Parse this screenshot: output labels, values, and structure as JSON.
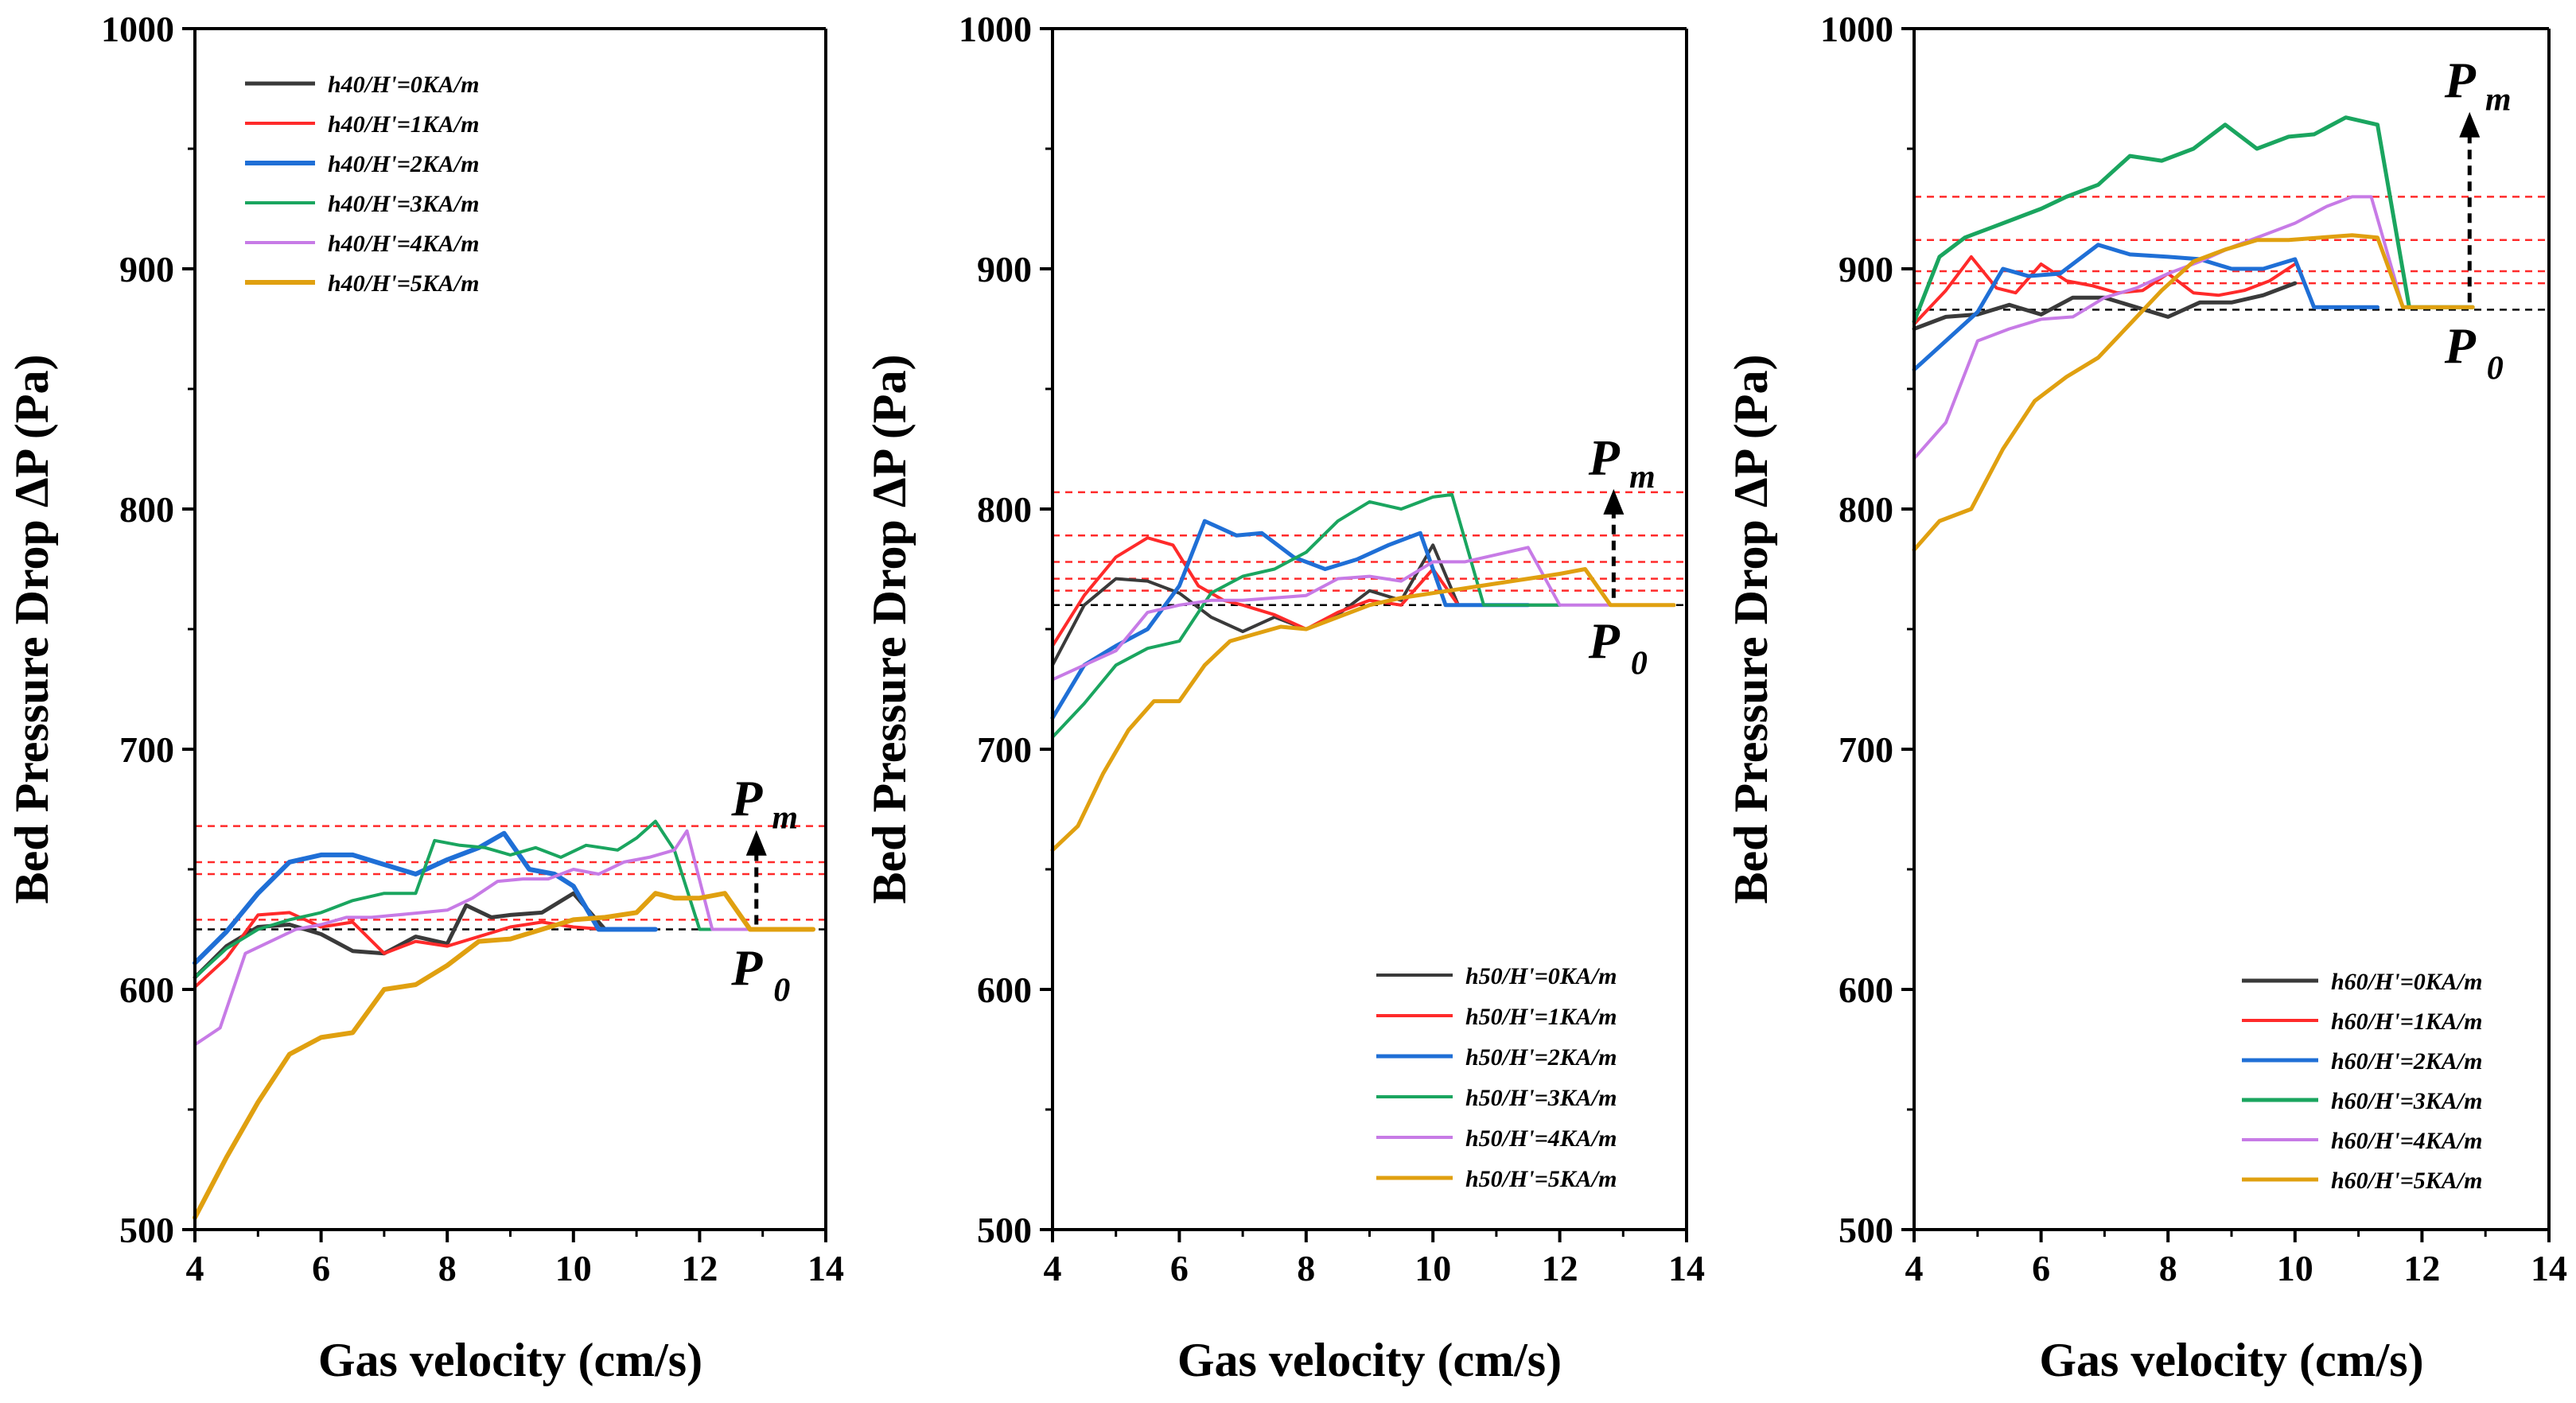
{
  "figure": {
    "ylabel": "Bed Pressure Drop ΔP (Pa)",
    "xlabel": "Gas velocity (cm/s)"
  },
  "colors": {
    "0KA": "#3a3a3a",
    "1KA": "#ff2a2a",
    "2KA": "#1f6fd6",
    "3KA": "#1aa55f",
    "4KA": "#c77be6",
    "5KA": "#e0a010"
  },
  "chart_data": [
    {
      "type": "line",
      "xlabel": "Gas velocity (cm/s)",
      "ylabel": "Bed Pressure Drop ΔP (Pa)",
      "xlim": [
        4,
        14
      ],
      "ylim": [
        500,
        1000
      ],
      "xticks": [
        "4",
        "6",
        "8",
        "10",
        "12",
        "14"
      ],
      "yticks": [
        "500",
        "600",
        "700",
        "800",
        "900",
        "1000"
      ],
      "legend_position": "top-left",
      "series": [
        {
          "name": "h40/H'=0KA/m",
          "key": "0KA",
          "width": 5,
          "x": [
            4.0,
            4.5,
            5.0,
            5.5,
            6.0,
            6.5,
            7.0,
            7.5,
            8.0,
            8.3,
            8.7,
            9.0,
            9.5,
            10.0,
            10.5,
            11.0,
            11.3
          ],
          "y": [
            605,
            618,
            626,
            627,
            623,
            616,
            615,
            622,
            619,
            635,
            630,
            631,
            632,
            640,
            625,
            625,
            625
          ]
        },
        {
          "name": "h40/H'=1KA/m",
          "key": "1KA",
          "width": 4,
          "x": [
            4.0,
            4.5,
            5.0,
            5.5,
            6.0,
            6.5,
            7.0,
            7.5,
            8.0,
            8.5,
            9.0,
            9.5,
            10.0,
            10.5
          ],
          "y": [
            601,
            613,
            631,
            632,
            626,
            628,
            615,
            620,
            618,
            622,
            626,
            628,
            626,
            625
          ]
        },
        {
          "name": "h40/H'=2KA/m",
          "key": "2KA",
          "width": 6,
          "x": [
            4.0,
            4.5,
            5.0,
            5.5,
            6.0,
            6.5,
            7.0,
            7.5,
            8.0,
            8.5,
            8.9,
            9.3,
            9.7,
            10.0,
            10.4,
            11.3
          ],
          "y": [
            611,
            624,
            640,
            653,
            656,
            656,
            652,
            648,
            654,
            659,
            665,
            650,
            648,
            643,
            625,
            625
          ]
        },
        {
          "name": "h40/H'=3KA/m",
          "key": "3KA",
          "width": 4,
          "x": [
            4.0,
            4.5,
            5.0,
            5.5,
            6.0,
            6.5,
            7.0,
            7.5,
            7.8,
            8.2,
            8.6,
            9.0,
            9.4,
            9.8,
            10.2,
            10.7,
            11.0,
            11.3,
            11.6,
            12.0,
            13.0
          ],
          "y": [
            605,
            617,
            625,
            629,
            632,
            637,
            640,
            640,
            662,
            660,
            659,
            656,
            659,
            655,
            660,
            658,
            663,
            670,
            658,
            625,
            625
          ]
        },
        {
          "name": "h40/H'=4KA/m",
          "key": "4KA",
          "width": 4,
          "x": [
            4.0,
            4.4,
            4.8,
            5.2,
            5.6,
            6.0,
            6.4,
            6.8,
            7.2,
            7.6,
            8.0,
            8.4,
            8.8,
            9.2,
            9.6,
            10.0,
            10.4,
            10.8,
            11.2,
            11.6,
            11.8,
            12.2,
            13.0
          ],
          "y": [
            577,
            584,
            615,
            620,
            625,
            627,
            630,
            630,
            631,
            632,
            633,
            638,
            645,
            646,
            646,
            650,
            648,
            653,
            655,
            658,
            666,
            625,
            625
          ]
        },
        {
          "name": "h40/H'=5KA/m",
          "key": "5KA",
          "width": 6,
          "x": [
            4.0,
            4.5,
            5.0,
            5.5,
            6.0,
            6.5,
            7.0,
            7.5,
            8.0,
            8.5,
            9.0,
            9.5,
            10.0,
            10.5,
            11.0,
            11.3,
            11.6,
            12.0,
            12.4,
            12.8,
            13.8
          ],
          "y": [
            505,
            530,
            553,
            573,
            580,
            582,
            600,
            602,
            610,
            620,
            621,
            625,
            629,
            630,
            632,
            640,
            638,
            638,
            640,
            625,
            625
          ]
        }
      ],
      "ref_lines": [
        {
          "y": 625,
          "color": "#000000"
        },
        {
          "y": 629,
          "color": "#ff2a2a"
        },
        {
          "y": 648,
          "color": "#ff2a2a"
        },
        {
          "y": 653,
          "color": "#ff2a2a"
        },
        {
          "y": 668,
          "color": "#ff2a2a"
        }
      ],
      "annotation": {
        "p_top": "P",
        "p_top_sub": "m",
        "p_bottom": "P",
        "p_bottom_sub": "0",
        "arrow_x": 12.9,
        "arrow_from": 627,
        "arrow_to": 665
      }
    },
    {
      "type": "line",
      "xlabel": "Gas velocity (cm/s)",
      "ylabel": "Bed Pressure Drop ΔP (Pa)",
      "xlim": [
        4,
        14
      ],
      "ylim": [
        500,
        1000
      ],
      "xticks": [
        "4",
        "6",
        "8",
        "10",
        "12",
        "14"
      ],
      "yticks": [
        "500",
        "600",
        "700",
        "800",
        "900",
        "1000"
      ],
      "legend_position": "bottom-right",
      "series": [
        {
          "name": "h50/H'=0KA/m",
          "key": "0KA",
          "width": 4,
          "x": [
            4.0,
            4.5,
            5.0,
            5.5,
            6.0,
            6.5,
            7.0,
            7.5,
            8.0,
            8.5,
            9.0,
            9.5,
            10.0,
            10.4,
            11.0,
            12.0
          ],
          "y": [
            735,
            760,
            771,
            770,
            765,
            755,
            749,
            755,
            750,
            756,
            766,
            762,
            785,
            760,
            760,
            760
          ]
        },
        {
          "name": "h50/H'=1KA/m",
          "key": "1KA",
          "width": 4,
          "x": [
            4.0,
            4.5,
            5.0,
            5.5,
            5.9,
            6.3,
            6.7,
            7.0,
            7.5,
            8.0,
            8.5,
            9.0,
            9.5,
            10.0,
            10.4,
            11.0
          ],
          "y": [
            743,
            764,
            780,
            788,
            785,
            768,
            762,
            760,
            756,
            750,
            757,
            762,
            760,
            775,
            760,
            760
          ]
        },
        {
          "name": "h50/H'=2KA/m",
          "key": "2KA",
          "width": 5,
          "x": [
            4.0,
            4.5,
            5.0,
            5.5,
            6.0,
            6.4,
            6.9,
            7.3,
            7.8,
            8.3,
            8.8,
            9.3,
            9.8,
            10.2,
            10.8,
            11.5
          ],
          "y": [
            713,
            735,
            743,
            750,
            768,
            795,
            789,
            790,
            780,
            775,
            779,
            785,
            790,
            760,
            760,
            760
          ]
        },
        {
          "name": "h50/H'=3KA/m",
          "key": "3KA",
          "width": 4,
          "x": [
            4.0,
            4.5,
            5.0,
            5.5,
            6.0,
            6.5,
            7.0,
            7.5,
            8.0,
            8.5,
            9.0,
            9.5,
            10.0,
            10.3,
            10.8,
            11.5,
            12.0
          ],
          "y": [
            705,
            719,
            735,
            742,
            745,
            765,
            772,
            775,
            782,
            795,
            803,
            800,
            805,
            806,
            760,
            760,
            760
          ]
        },
        {
          "name": "h50/H'=4KA/m",
          "key": "4KA",
          "width": 4,
          "x": [
            4.0,
            4.5,
            5.0,
            5.5,
            6.0,
            6.5,
            7.0,
            7.5,
            8.0,
            8.5,
            9.0,
            9.5,
            10.0,
            10.5,
            11.0,
            11.5,
            12.0,
            12.5,
            13.0
          ],
          "y": [
            729,
            735,
            741,
            757,
            760,
            762,
            762,
            763,
            764,
            771,
            772,
            770,
            778,
            778,
            781,
            784,
            760,
            760,
            760
          ]
        },
        {
          "name": "h50/H'=5KA/m",
          "key": "5KA",
          "width": 5,
          "x": [
            4.0,
            4.4,
            4.8,
            5.2,
            5.6,
            6.0,
            6.4,
            6.8,
            7.2,
            7.6,
            8.0,
            8.5,
            9.0,
            9.5,
            10.0,
            10.5,
            11.0,
            11.5,
            12.0,
            12.4,
            12.8,
            13.8
          ],
          "y": [
            658,
            668,
            690,
            708,
            720,
            720,
            735,
            745,
            748,
            751,
            750,
            755,
            760,
            763,
            765,
            767,
            769,
            771,
            773,
            775,
            760,
            760
          ]
        }
      ],
      "ref_lines": [
        {
          "y": 760,
          "color": "#000000"
        },
        {
          "y": 766,
          "color": "#ff2a2a"
        },
        {
          "y": 771,
          "color": "#ff2a2a"
        },
        {
          "y": 778,
          "color": "#ff2a2a"
        },
        {
          "y": 789,
          "color": "#ff2a2a"
        },
        {
          "y": 807,
          "color": "#ff2a2a"
        }
      ],
      "annotation": {
        "p_top": "P",
        "p_top_sub": "m",
        "p_bottom": "P",
        "p_bottom_sub": "0",
        "arrow_x": 12.85,
        "arrow_from": 763,
        "arrow_to": 807
      }
    },
    {
      "type": "line",
      "xlabel": "Gas velocity (cm/s)",
      "ylabel": "Bed Pressure Drop ΔP (Pa)",
      "xlim": [
        4,
        14
      ],
      "ylim": [
        500,
        1000
      ],
      "xticks": [
        "4",
        "6",
        "8",
        "10",
        "12",
        "14"
      ],
      "yticks": [
        "500",
        "600",
        "700",
        "800",
        "900",
        "1000"
      ],
      "legend_position": "bottom-right",
      "series": [
        {
          "name": "h60/H'=0KA/m",
          "key": "0KA",
          "width": 5,
          "x": [
            4.0,
            4.5,
            5.0,
            5.5,
            6.0,
            6.5,
            7.0,
            7.5,
            8.0,
            8.5,
            9.0,
            9.5,
            10.0
          ],
          "y": [
            875,
            880,
            881,
            885,
            881,
            888,
            888,
            884,
            880,
            886,
            886,
            889,
            894
          ]
        },
        {
          "name": "h60/H'=1KA/m",
          "key": "1KA",
          "width": 4,
          "x": [
            4.0,
            4.5,
            4.9,
            5.3,
            5.6,
            6.0,
            6.4,
            6.8,
            7.2,
            7.6,
            8.0,
            8.4,
            8.8,
            9.2,
            9.6,
            10.0
          ],
          "y": [
            877,
            891,
            905,
            892,
            890,
            902,
            895,
            893,
            890,
            891,
            898,
            890,
            889,
            891,
            895,
            902
          ]
        },
        {
          "name": "h60/H'=2KA/m",
          "key": "2KA",
          "width": 5,
          "x": [
            4.0,
            4.5,
            5.0,
            5.4,
            5.8,
            6.3,
            6.9,
            7.4,
            8.0,
            8.5,
            9.0,
            9.5,
            10.0,
            10.3,
            11.3
          ],
          "y": [
            858,
            870,
            882,
            900,
            897,
            898,
            910,
            906,
            905,
            904,
            900,
            900,
            904,
            884,
            884
          ]
        },
        {
          "name": "h60/H'=3KA/m",
          "key": "3KA",
          "width": 5,
          "x": [
            4.0,
            4.4,
            4.8,
            5.2,
            5.6,
            6.0,
            6.4,
            6.9,
            7.4,
            7.9,
            8.4,
            8.9,
            9.4,
            9.9,
            10.3,
            10.8,
            11.3,
            11.8,
            12.8
          ],
          "y": [
            878,
            905,
            913,
            917,
            921,
            925,
            930,
            935,
            947,
            945,
            950,
            960,
            950,
            955,
            956,
            963,
            960,
            884,
            884
          ]
        },
        {
          "name": "h60/H'=4KA/m",
          "key": "4KA",
          "width": 4,
          "x": [
            4.0,
            4.5,
            5.0,
            5.5,
            6.0,
            6.5,
            7.0,
            7.5,
            8.0,
            8.5,
            9.0,
            9.5,
            10.0,
            10.5,
            10.9,
            11.2,
            11.7,
            12.8
          ],
          "y": [
            821,
            836,
            870,
            875,
            879,
            880,
            888,
            892,
            898,
            903,
            909,
            914,
            919,
            926,
            930,
            930,
            884,
            884
          ]
        },
        {
          "name": "h60/H'=5KA/m",
          "key": "5KA",
          "width": 5,
          "x": [
            4.0,
            4.4,
            4.9,
            5.4,
            5.9,
            6.4,
            6.9,
            7.4,
            7.9,
            8.4,
            8.9,
            9.4,
            9.9,
            10.4,
            10.9,
            11.3,
            11.7,
            12.8
          ],
          "y": [
            783,
            795,
            800,
            825,
            845,
            855,
            863,
            877,
            891,
            903,
            908,
            912,
            912,
            913,
            914,
            913,
            884,
            884
          ]
        }
      ],
      "ref_lines": [
        {
          "y": 883,
          "color": "#000000"
        },
        {
          "y": 894,
          "color": "#ff2a2a"
        },
        {
          "y": 899,
          "color": "#ff2a2a"
        },
        {
          "y": 912,
          "color": "#ff2a2a"
        },
        {
          "y": 930,
          "color": "#ff2a2a"
        }
      ],
      "annotation": {
        "p_top": "P",
        "p_top_sub": "m",
        "p_bottom": "P",
        "p_bottom_sub": "0",
        "arrow_x": 12.75,
        "arrow_from": 886,
        "arrow_to": 964
      }
    }
  ]
}
